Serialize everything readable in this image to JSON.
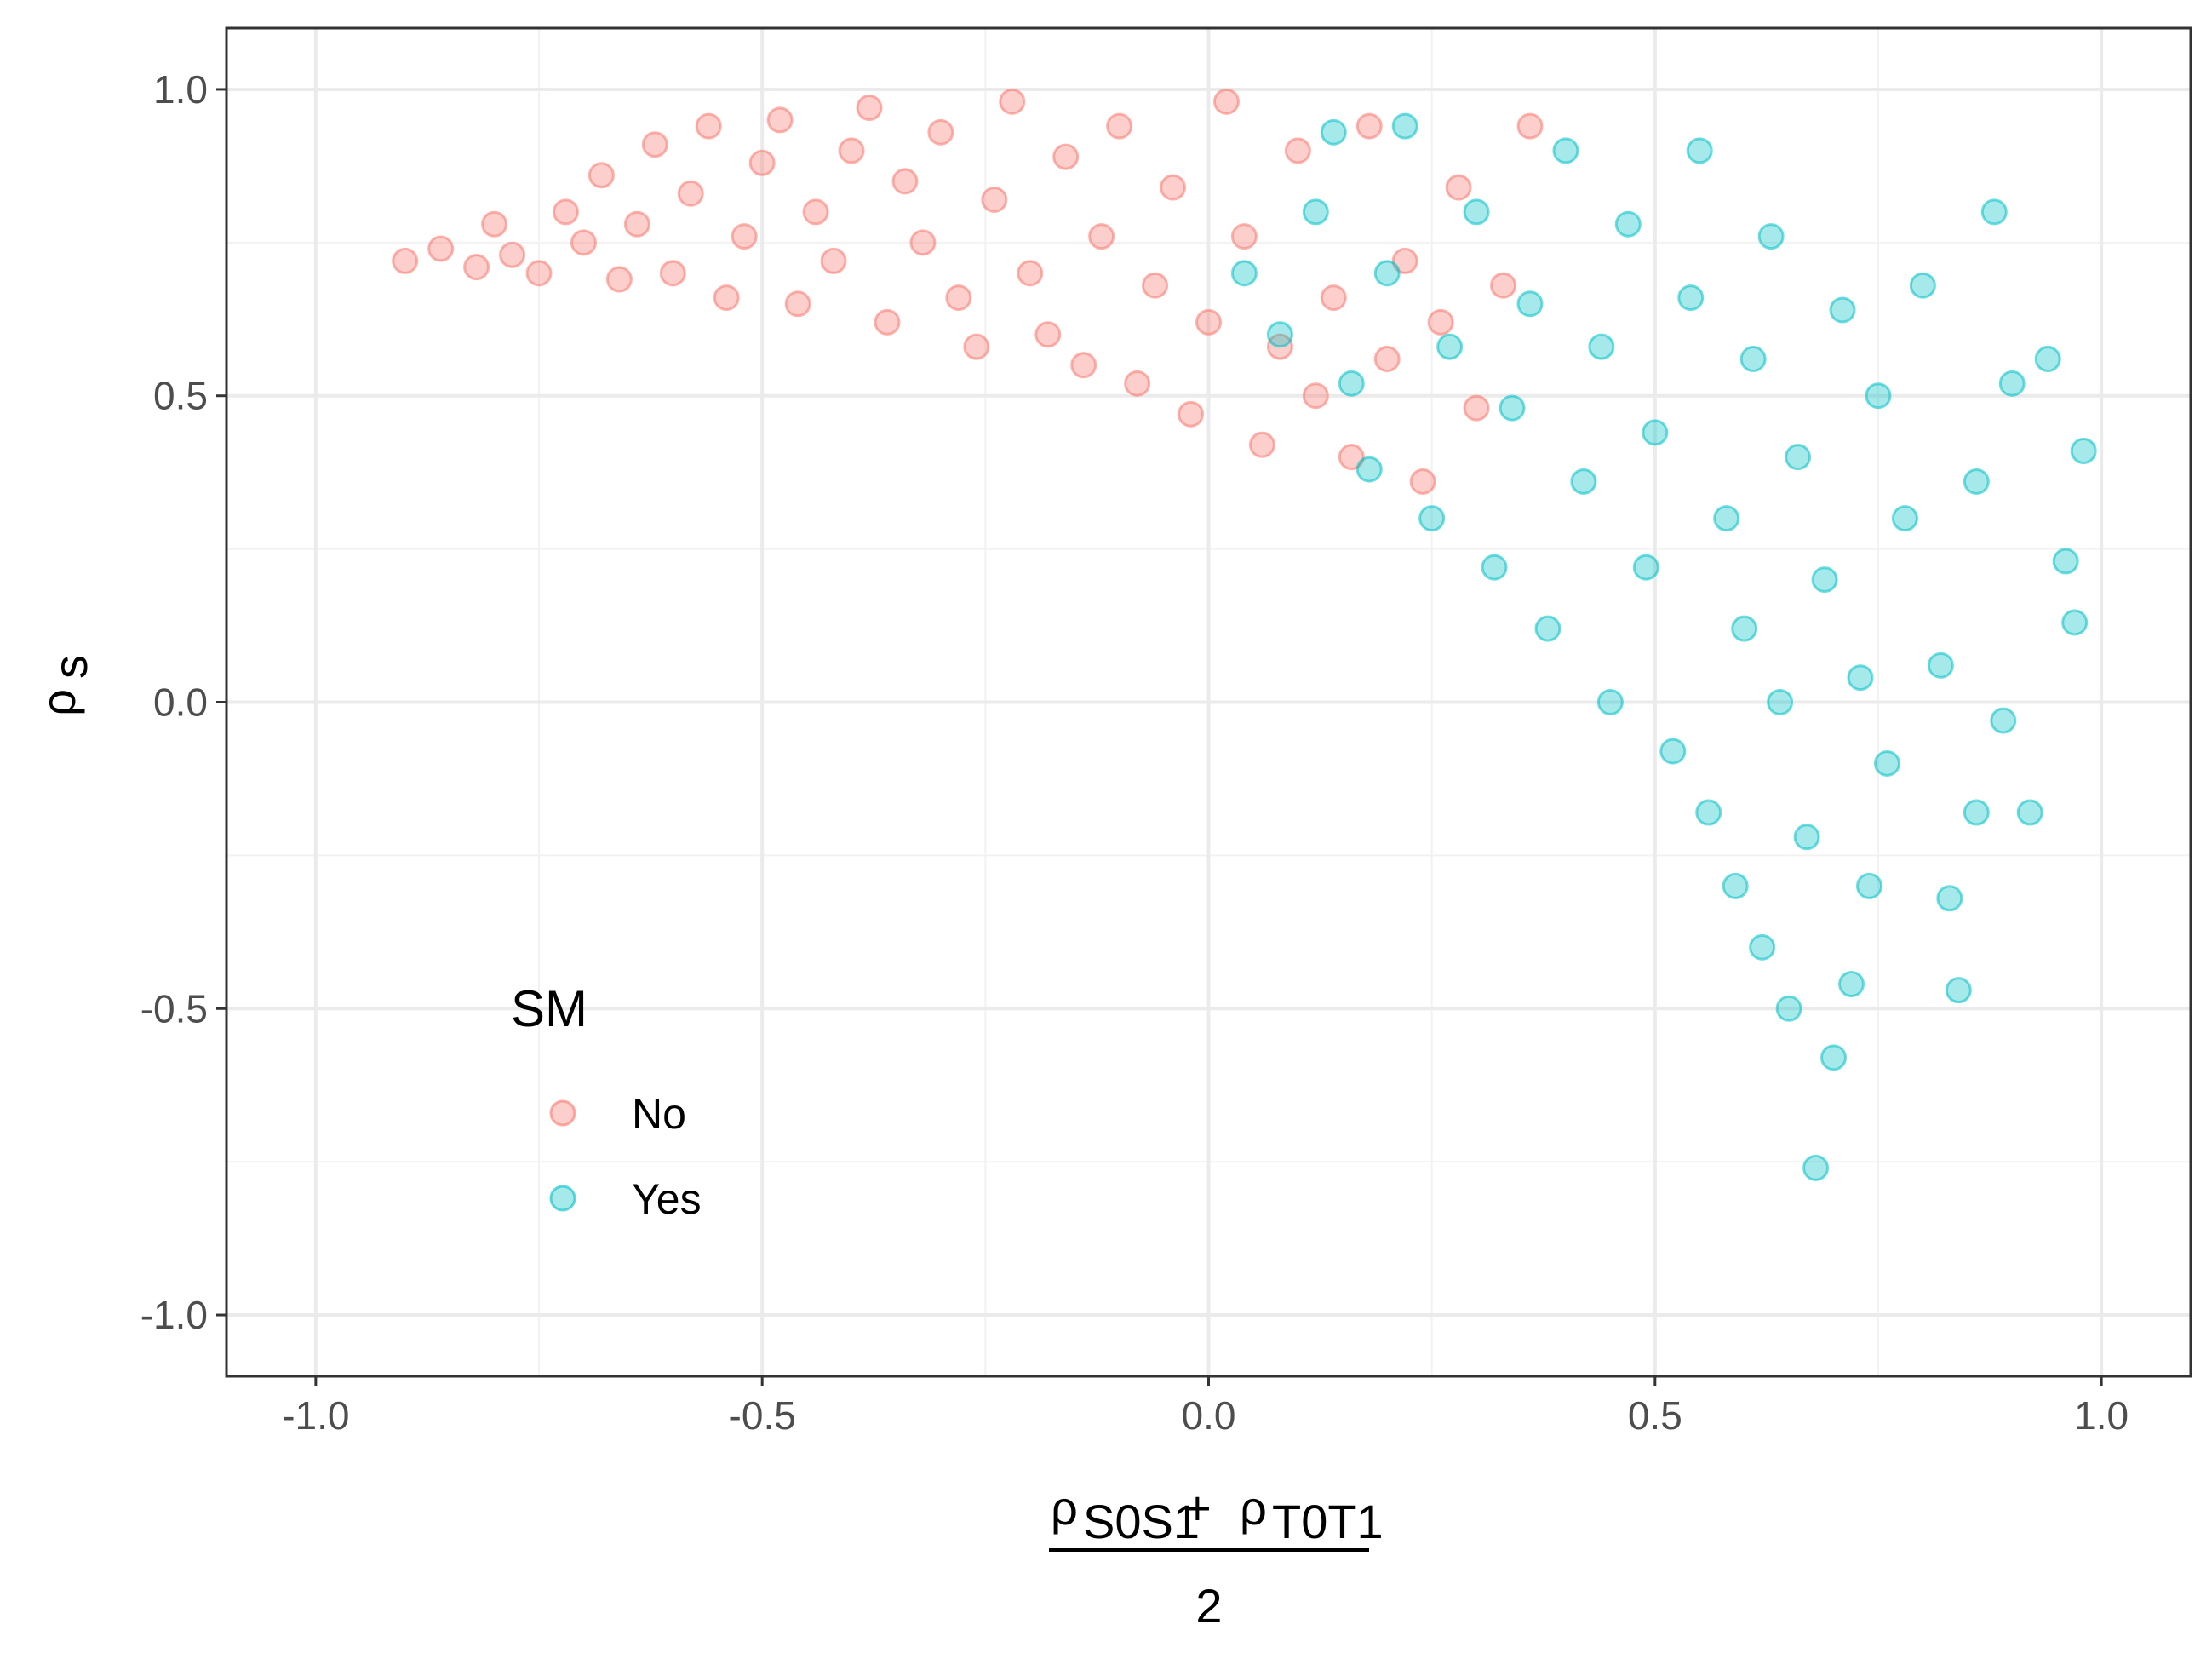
{
  "chart_data": {
    "type": "scatter",
    "xlabel": {
      "numerator_left": "ρ",
      "numerator_left_sub": "S0S1",
      "plus": "+",
      "numerator_right": "ρ",
      "numerator_right_sub": "T0T1",
      "denominator": "2"
    },
    "ylabel": {
      "symbol": "ρ",
      "sub": "s"
    },
    "xlim": [
      -1.1,
      1.1
    ],
    "ylim": [
      -1.1,
      1.1
    ],
    "x_ticks": [
      -1.0,
      -0.5,
      0.0,
      0.5,
      1.0
    ],
    "x_tick_labels": [
      "-1.0",
      "-0.5",
      "0.0",
      "0.5",
      "1.0"
    ],
    "y_ticks": [
      -1.0,
      -0.5,
      0.0,
      0.5,
      1.0
    ],
    "y_tick_labels": [
      "-1.0",
      "-0.5",
      "0.0",
      "0.5",
      "1.0"
    ],
    "grid": true,
    "legend": {
      "title": "SM",
      "placement": "bottom-left inside",
      "entries": [
        {
          "label": "No",
          "color": "#F8766D"
        },
        {
          "label": "Yes",
          "color": "#00BFC4"
        }
      ]
    },
    "series": [
      {
        "name": "No",
        "color": "#F8766D",
        "points": [
          [
            -0.9,
            0.72
          ],
          [
            -0.86,
            0.74
          ],
          [
            -0.82,
            0.71
          ],
          [
            -0.8,
            0.78
          ],
          [
            -0.78,
            0.73
          ],
          [
            -0.75,
            0.7
          ],
          [
            -0.72,
            0.8
          ],
          [
            -0.7,
            0.75
          ],
          [
            -0.68,
            0.86
          ],
          [
            -0.66,
            0.69
          ],
          [
            -0.64,
            0.78
          ],
          [
            -0.62,
            0.91
          ],
          [
            -0.6,
            0.7
          ],
          [
            -0.58,
            0.83
          ],
          [
            -0.56,
            0.94
          ],
          [
            -0.54,
            0.66
          ],
          [
            -0.52,
            0.76
          ],
          [
            -0.5,
            0.88
          ],
          [
            -0.48,
            0.95
          ],
          [
            -0.46,
            0.65
          ],
          [
            -0.44,
            0.8
          ],
          [
            -0.42,
            0.72
          ],
          [
            -0.4,
            0.9
          ],
          [
            -0.38,
            0.97
          ],
          [
            -0.36,
            0.62
          ],
          [
            -0.34,
            0.85
          ],
          [
            -0.32,
            0.75
          ],
          [
            -0.3,
            0.93
          ],
          [
            -0.28,
            0.66
          ],
          [
            -0.26,
            0.58
          ],
          [
            -0.24,
            0.82
          ],
          [
            -0.22,
            0.98
          ],
          [
            -0.2,
            0.7
          ],
          [
            -0.18,
            0.6
          ],
          [
            -0.16,
            0.89
          ],
          [
            -0.14,
            0.55
          ],
          [
            -0.12,
            0.76
          ],
          [
            -0.1,
            0.94
          ],
          [
            -0.08,
            0.52
          ],
          [
            -0.06,
            0.68
          ],
          [
            -0.04,
            0.84
          ],
          [
            -0.02,
            0.47
          ],
          [
            0.0,
            0.62
          ],
          [
            0.02,
            0.98
          ],
          [
            0.04,
            0.76
          ],
          [
            0.06,
            0.42
          ],
          [
            0.08,
            0.58
          ],
          [
            0.1,
            0.9
          ],
          [
            0.12,
            0.5
          ],
          [
            0.14,
            0.66
          ],
          [
            0.16,
            0.4
          ],
          [
            0.18,
            0.94
          ],
          [
            0.2,
            0.56
          ],
          [
            0.22,
            0.72
          ],
          [
            0.24,
            0.36
          ],
          [
            0.26,
            0.62
          ],
          [
            0.28,
            0.84
          ],
          [
            0.3,
            0.48
          ],
          [
            0.33,
            0.68
          ],
          [
            0.36,
            0.94
          ]
        ]
      },
      {
        "name": "Yes",
        "color": "#00BFC4",
        "points": [
          [
            0.04,
            0.7
          ],
          [
            0.08,
            0.6
          ],
          [
            0.12,
            0.8
          ],
          [
            0.14,
            0.93
          ],
          [
            0.16,
            0.52
          ],
          [
            0.18,
            0.38
          ],
          [
            0.2,
            0.7
          ],
          [
            0.22,
            0.94
          ],
          [
            0.25,
            0.3
          ],
          [
            0.27,
            0.58
          ],
          [
            0.3,
            0.8
          ],
          [
            0.32,
            0.22
          ],
          [
            0.34,
            0.48
          ],
          [
            0.36,
            0.65
          ],
          [
            0.38,
            0.12
          ],
          [
            0.4,
            0.9
          ],
          [
            0.42,
            0.36
          ],
          [
            0.44,
            0.58
          ],
          [
            0.45,
            0.0
          ],
          [
            0.47,
            0.78
          ],
          [
            0.49,
            0.22
          ],
          [
            0.5,
            0.44
          ],
          [
            0.52,
            -0.08
          ],
          [
            0.54,
            0.66
          ],
          [
            0.55,
            0.9
          ],
          [
            0.56,
            -0.18
          ],
          [
            0.58,
            0.3
          ],
          [
            0.59,
            -0.3
          ],
          [
            0.6,
            0.12
          ],
          [
            0.61,
            0.56
          ],
          [
            0.62,
            -0.4
          ],
          [
            0.63,
            0.76
          ],
          [
            0.64,
            0.0
          ],
          [
            0.65,
            -0.5
          ],
          [
            0.66,
            0.4
          ],
          [
            0.67,
            -0.22
          ],
          [
            0.68,
            -0.76
          ],
          [
            0.69,
            0.2
          ],
          [
            0.7,
            -0.58
          ],
          [
            0.71,
            0.64
          ],
          [
            0.72,
            -0.46
          ],
          [
            0.73,
            0.04
          ],
          [
            0.74,
            -0.3
          ],
          [
            0.75,
            0.5
          ],
          [
            0.76,
            -0.1
          ],
          [
            0.78,
            0.3
          ],
          [
            0.8,
            0.68
          ],
          [
            0.82,
            0.06
          ],
          [
            0.83,
            -0.32
          ],
          [
            0.84,
            -0.47
          ],
          [
            0.86,
            0.36
          ],
          [
            0.88,
            0.8
          ],
          [
            0.89,
            -0.03
          ],
          [
            0.9,
            0.52
          ],
          [
            0.92,
            -0.18
          ],
          [
            0.94,
            0.56
          ],
          [
            0.96,
            0.23
          ],
          [
            0.97,
            0.13
          ],
          [
            0.98,
            0.41
          ],
          [
            0.86,
            -0.18
          ]
        ]
      }
    ]
  }
}
